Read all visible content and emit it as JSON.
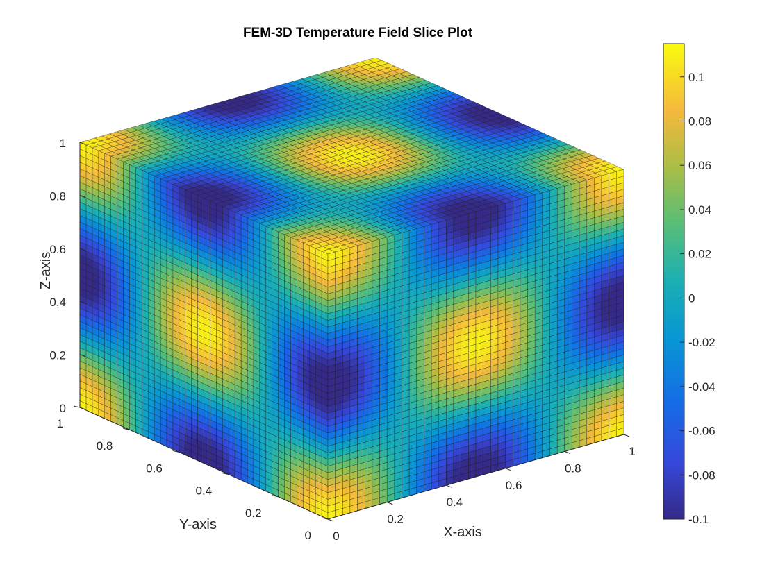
{
  "chart_data": {
    "type": "heatmap",
    "subtype": "3d-slice-surface",
    "title": "FEM-3D Temperature Field Slice Plot",
    "xlabel": "X-axis",
    "ylabel": "Y-axis",
    "zlabel": "Z-axis",
    "xlim": [
      0,
      1
    ],
    "ylim": [
      0,
      1
    ],
    "zlim": [
      0,
      1
    ],
    "x_ticks": [
      "0",
      "0.2",
      "0.4",
      "0.6",
      "0.8",
      "1"
    ],
    "y_ticks": [
      "0",
      "0.2",
      "0.4",
      "0.6",
      "0.8",
      "1"
    ],
    "z_ticks": [
      "0",
      "0.2",
      "0.4",
      "0.6",
      "0.8",
      "1"
    ],
    "grid_n": 40,
    "field_amplitude": 0.11,
    "slices": [
      {
        "plane": "z",
        "value": 0
      },
      {
        "plane": "x",
        "value": 0
      },
      {
        "plane": "y",
        "value": 0
      },
      {
        "plane": "z",
        "value": 1
      }
    ],
    "colorbar": {
      "colormap": "parula",
      "clim": [
        -0.1,
        0.115
      ],
      "ticks": [
        "-0.1",
        "-0.08",
        "-0.06",
        "-0.04",
        "-0.02",
        "0",
        "0.02",
        "0.04",
        "0.06",
        "0.08",
        "0.1"
      ],
      "placement": "right"
    },
    "grid": false,
    "legend": "none"
  }
}
